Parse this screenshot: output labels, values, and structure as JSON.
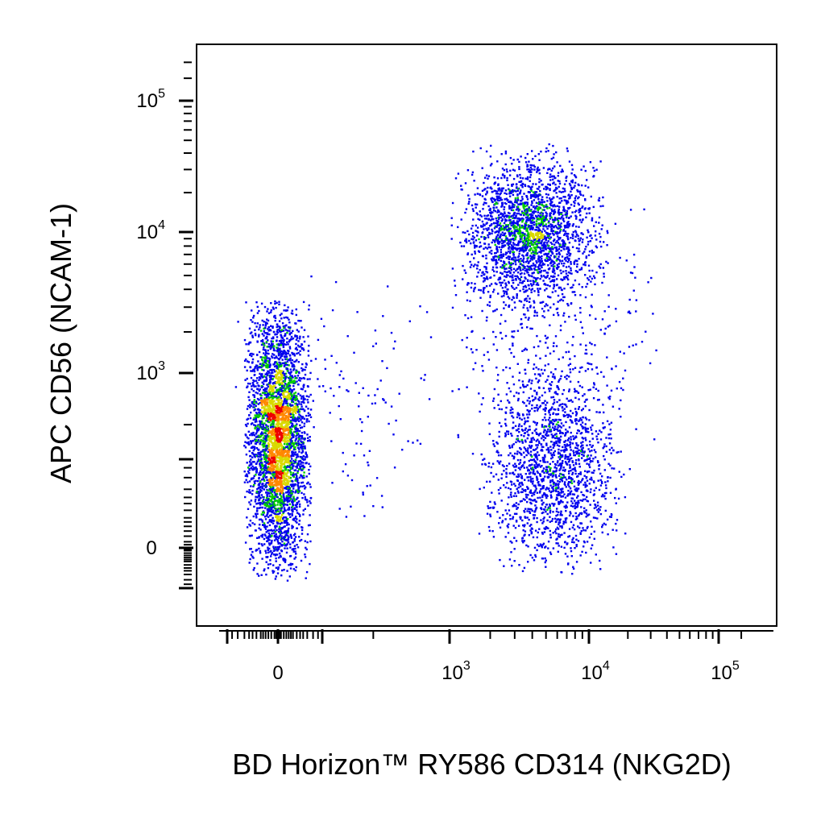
{
  "chart_data": {
    "type": "scatter",
    "style": "flow-cytometry density dot plot",
    "xlabel": "BD Horizon™ RY586  CD314 (NKG2D)",
    "ylabel": "APC  CD56 (NCAM-1)",
    "x_scale": "biexponential",
    "y_scale": "biexponential",
    "x_ticks": [
      {
        "value": 0,
        "base": "0",
        "exp": ""
      },
      {
        "value": 1000,
        "base": "10",
        "exp": "3"
      },
      {
        "value": 10000,
        "base": "10",
        "exp": "4"
      },
      {
        "value": 100000,
        "base": "10",
        "exp": "5"
      }
    ],
    "y_ticks": [
      {
        "value": 0,
        "base": "0",
        "exp": ""
      },
      {
        "value": 1000,
        "base": "10",
        "exp": "3"
      },
      {
        "value": 10000,
        "base": "10",
        "exp": "4"
      },
      {
        "value": 100000,
        "base": "10",
        "exp": "5"
      }
    ],
    "xlim": [
      -300,
      200000
    ],
    "ylim": [
      -300,
      250000
    ],
    "grid": false,
    "density_colors": [
      "#0000ee",
      "#00cc00",
      "#d9d900",
      "#ff8800",
      "#ee0000"
    ],
    "populations": [
      {
        "x_center": 0,
        "y_center": 400,
        "count": 3800,
        "density": "high"
      },
      {
        "x_center": 3800,
        "y_center": 10000,
        "count": 2300,
        "density": "medium"
      },
      {
        "x_center": 5500,
        "y_center": 250,
        "count": 1700,
        "density": "low"
      },
      {
        "x_center": 5000,
        "y_center": 2000,
        "count": 350,
        "density": "sparse"
      },
      {
        "x_center": 400,
        "y_center": 600,
        "count": 120,
        "density": "sparse"
      }
    ]
  }
}
